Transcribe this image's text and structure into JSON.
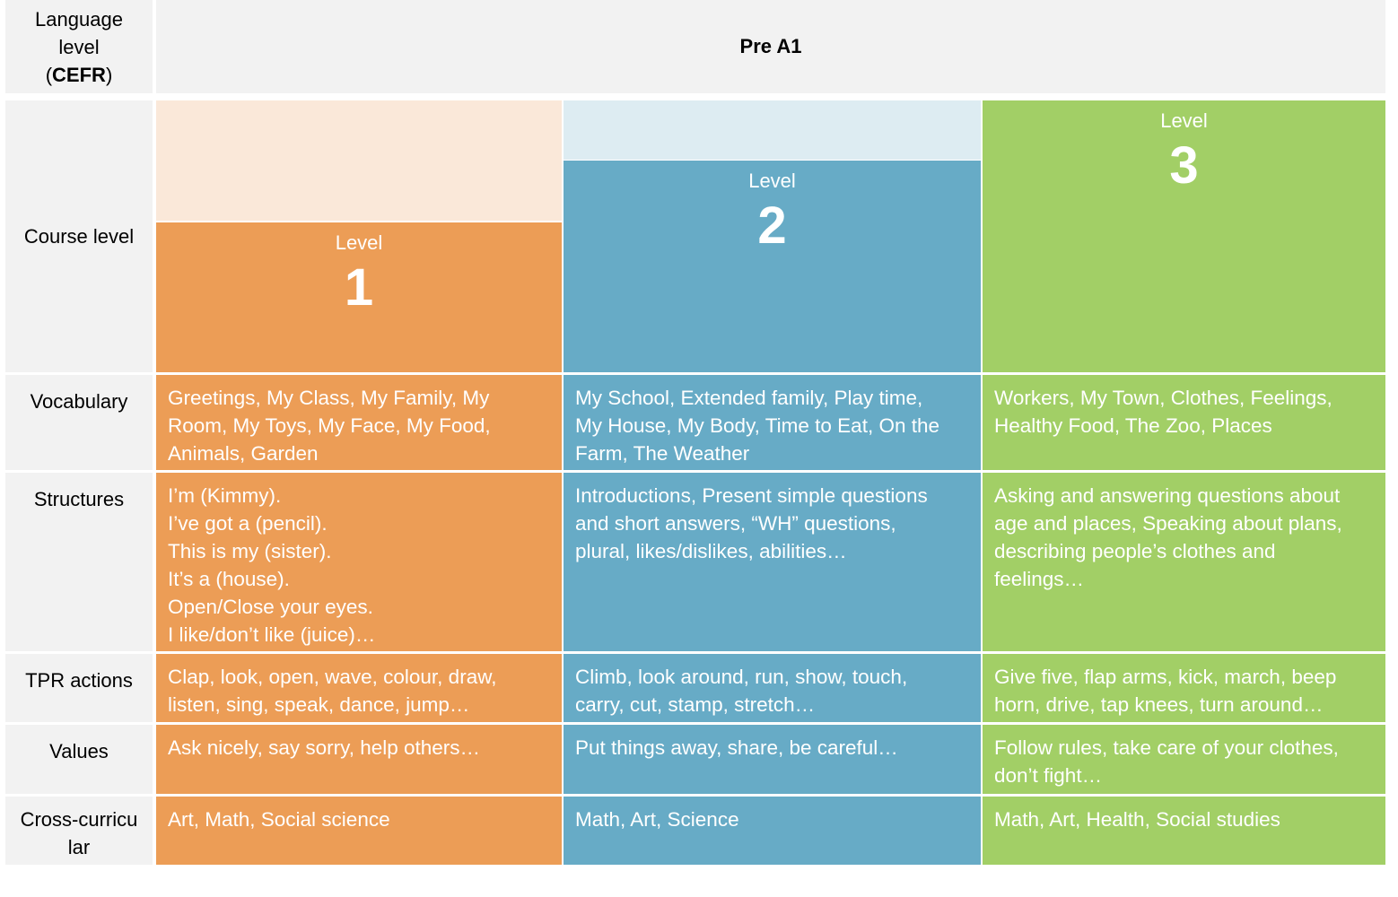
{
  "header": {
    "language_level_label": "Language\nlevel\n(CEFR)",
    "language_level_value": "Pre A1"
  },
  "row_labels": {
    "course_level": "Course level",
    "vocabulary": "Vocabulary",
    "structures": "Structures",
    "tpr_actions": "TPR actions",
    "values": "Values",
    "cross_curricular": "Cross-curricu\nlar"
  },
  "levels": [
    {
      "word": "Level",
      "number": "1",
      "color": "#ec9d56",
      "light_color": "#fae8d9",
      "vocabulary": "Greetings, My Class, My Family, My\nRoom, My Toys, My Face, My Food,\nAnimals, Garden",
      "structures": "I’m (Kimmy).\nI’ve got a (pencil).\nThis is my (sister).\nIt’s a (house).\nOpen/Close your eyes.\nI like/don’t like (juice)…",
      "tpr_actions": "Clap, look, open, wave, colour, draw,\nlisten, sing, speak, dance, jump…",
      "values": "Ask nicely, say sorry, help others…",
      "cross_curricular": "Art, Math, Social science"
    },
    {
      "word": "Level",
      "number": "2",
      "color": "#67abc6",
      "light_color": "#ddecf2",
      "vocabulary": "My School, Extended family, Play time,\nMy House, My Body, Time to Eat, On the\nFarm, The Weather",
      "structures": "Introductions, Present simple questions\nand short answers, “WH” questions,\nplural, likes/dislikes, abilities…",
      "tpr_actions": "Climb, look around, run, show, touch,\ncarry, cut, stamp, stretch…",
      "values": "Put things away, share, be careful…",
      "cross_curricular": "Math, Art, Science"
    },
    {
      "word": "Level",
      "number": "3",
      "color": "#a2cf66",
      "light_color": "#a2cf66",
      "vocabulary": "Workers, My Town, Clothes, Feelings,\nHealthy Food, The Zoo, Places",
      "structures": "Asking and answering questions about\nage and places, Speaking about plans,\ndescribing people’s clothes and\nfeelings…",
      "tpr_actions": "Give five, flap arms, kick, march, beep\nhorn, drive, tap knees, turn around…",
      "values": "Follow rules, take care of your clothes,\ndon’t fight…",
      "cross_curricular": "Math, Art, Health, Social studies"
    }
  ]
}
